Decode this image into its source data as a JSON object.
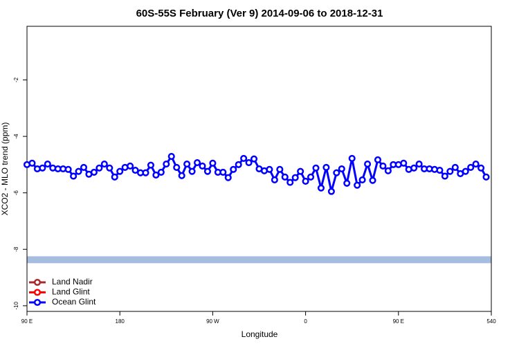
{
  "chart_data": {
    "type": "line",
    "title": "60S-55S February (Ver 9)   2014-09-06 to 2018-12-31",
    "x_label": "Longitude",
    "y_label": "XCO2 - MLO trend (ppm)",
    "xlim": [
      90,
      540
    ],
    "ylim": [
      -10.2,
      -0.1
    ],
    "xticks": [
      {
        "value": 90,
        "label": "90 E"
      },
      180,
      {
        "value": 270,
        "label": "90 W"
      },
      {
        "value": 360,
        "label": "0"
      },
      {
        "value": 450,
        "label": "90 E"
      },
      540
    ],
    "yticks": [
      -2,
      -4,
      -6,
      -8,
      -10
    ],
    "band": {
      "value": -8.37,
      "color": "#a7bde0"
    },
    "legend": "bottom-left",
    "x": [
      90,
      95,
      100,
      105,
      110,
      115,
      120,
      125,
      130,
      135,
      140,
      145,
      150,
      155,
      160,
      165,
      170,
      175,
      180,
      185,
      190,
      195,
      200,
      205,
      210,
      215,
      220,
      225,
      230,
      235,
      240,
      245,
      250,
      255,
      260,
      265,
      270,
      275,
      280,
      285,
      290,
      295,
      300,
      305,
      310,
      315,
      320,
      325,
      330,
      335,
      340,
      345,
      350,
      355,
      360,
      365,
      370,
      375,
      380,
      385,
      390,
      395,
      400,
      405,
      410,
      415,
      420,
      425,
      430,
      435,
      440,
      445,
      450,
      455,
      460,
      465,
      470,
      475,
      480,
      485,
      490,
      495,
      500,
      505,
      510,
      515,
      520,
      525,
      530,
      535
    ],
    "series": [
      {
        "name": "Land Nadir",
        "color": "#a52a2a"
      },
      {
        "name": "Land Glint",
        "color": "#ff0000"
      },
      {
        "name": "Ocean Glint",
        "color": "#0000ff",
        "values": [
          -5.0,
          -4.95,
          -5.15,
          -5.12,
          -4.98,
          -5.12,
          -5.15,
          -5.15,
          -5.17,
          -5.41,
          -5.24,
          -5.1,
          -5.34,
          -5.27,
          -5.12,
          -4.98,
          -5.12,
          -5.44,
          -5.24,
          -5.1,
          -5.05,
          -5.2,
          -5.29,
          -5.29,
          -5.02,
          -5.37,
          -5.27,
          -4.98,
          -4.71,
          -5.1,
          -5.39,
          -4.98,
          -5.24,
          -4.93,
          -5.05,
          -5.24,
          -4.95,
          -5.27,
          -5.27,
          -5.46,
          -5.17,
          -5.0,
          -4.78,
          -4.93,
          -4.8,
          -5.15,
          -5.22,
          -5.17,
          -5.54,
          -5.17,
          -5.44,
          -5.63,
          -5.46,
          -5.24,
          -5.59,
          -5.44,
          -5.12,
          -5.83,
          -5.1,
          -5.95,
          -5.29,
          -5.15,
          -5.66,
          -4.78,
          -5.73,
          -5.54,
          -4.98,
          -5.56,
          -4.83,
          -5.05,
          -5.22,
          -5.0,
          -5.0,
          -4.95,
          -5.17,
          -5.12,
          -4.98,
          -5.15,
          -5.15,
          -5.17,
          -5.2,
          -5.41,
          -5.24,
          -5.1,
          -5.32,
          -5.24,
          -5.1,
          -4.98,
          -5.12,
          -5.44
        ]
      }
    ]
  }
}
